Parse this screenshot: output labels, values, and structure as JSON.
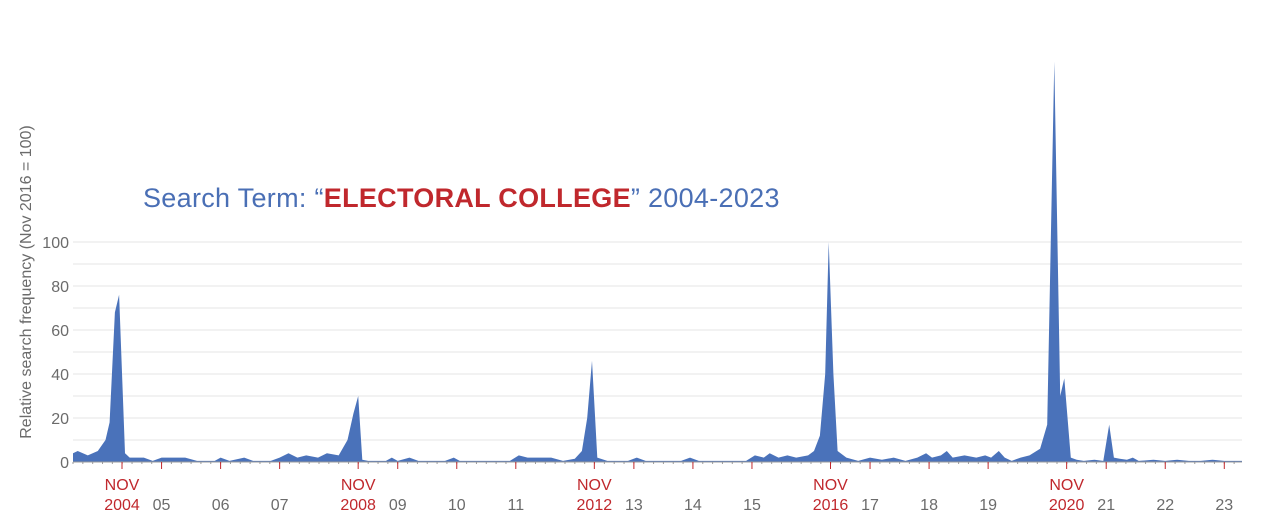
{
  "chart_data": {
    "type": "area",
    "title": {
      "prefix": "Search Term: “",
      "term": "ELECTORAL COLLEGE",
      "suffix": "” 2004-2023"
    },
    "xlabel": "",
    "ylabel": "Relative search frequency (Nov 2016 = 100)",
    "xlim": [
      2004.0,
      2023.8
    ],
    "ylim": [
      0,
      100
    ],
    "yticks": [
      0,
      20,
      40,
      60,
      80,
      100
    ],
    "grid": true,
    "legend": "none",
    "colors": {
      "series": "#4a72ba",
      "highlight": "#c0282d",
      "title": "#4a6fb5"
    },
    "xticks": [
      {
        "x": 2004.83,
        "label": "NOV",
        "label2": "2004",
        "highlight": true
      },
      {
        "x": 2005.5,
        "label": "05"
      },
      {
        "x": 2006.5,
        "label": "06"
      },
      {
        "x": 2007.5,
        "label": "07"
      },
      {
        "x": 2008.83,
        "label": "NOV",
        "label2": "2008",
        "highlight": true
      },
      {
        "x": 2009.5,
        "label": "09"
      },
      {
        "x": 2010.5,
        "label": "10"
      },
      {
        "x": 2011.5,
        "label": "11"
      },
      {
        "x": 2012.83,
        "label": "NOV",
        "label2": "2012",
        "highlight": true
      },
      {
        "x": 2013.5,
        "label": "13"
      },
      {
        "x": 2014.5,
        "label": "14"
      },
      {
        "x": 2015.5,
        "label": "15"
      },
      {
        "x": 2016.83,
        "label": "NOV",
        "label2": "2016",
        "highlight": true
      },
      {
        "x": 2017.5,
        "label": "17"
      },
      {
        "x": 2018.5,
        "label": "18"
      },
      {
        "x": 2019.5,
        "label": "19"
      },
      {
        "x": 2020.83,
        "label": "NOV",
        "label2": "2020",
        "highlight": true
      },
      {
        "x": 2021.5,
        "label": "21"
      },
      {
        "x": 2022.5,
        "label": "22"
      },
      {
        "x": 2023.5,
        "label": "23"
      }
    ],
    "series": [
      {
        "points": [
          [
            2004.0,
            4
          ],
          [
            2004.08,
            5
          ],
          [
            2004.25,
            3
          ],
          [
            2004.42,
            5
          ],
          [
            2004.55,
            10
          ],
          [
            2004.62,
            18
          ],
          [
            2004.71,
            68
          ],
          [
            2004.78,
            76
          ],
          [
            2004.88,
            4
          ],
          [
            2004.96,
            2
          ],
          [
            2005.2,
            2
          ],
          [
            2005.35,
            0.5
          ],
          [
            2005.5,
            2
          ],
          [
            2005.9,
            2
          ],
          [
            2006.1,
            0.5
          ],
          [
            2006.4,
            0.5
          ],
          [
            2006.5,
            2
          ],
          [
            2006.65,
            0.5
          ],
          [
            2006.9,
            2
          ],
          [
            2007.05,
            0.5
          ],
          [
            2007.35,
            0.5
          ],
          [
            2007.5,
            2
          ],
          [
            2007.65,
            4
          ],
          [
            2007.8,
            2
          ],
          [
            2007.95,
            3
          ],
          [
            2008.15,
            2
          ],
          [
            2008.3,
            4
          ],
          [
            2008.5,
            3
          ],
          [
            2008.65,
            10
          ],
          [
            2008.75,
            22
          ],
          [
            2008.83,
            30
          ],
          [
            2008.9,
            1
          ],
          [
            2009.0,
            0.5
          ],
          [
            2009.3,
            0.5
          ],
          [
            2009.4,
            2
          ],
          [
            2009.5,
            0.5
          ],
          [
            2009.7,
            2
          ],
          [
            2009.85,
            0.5
          ],
          [
            2010.3,
            0.5
          ],
          [
            2010.45,
            2
          ],
          [
            2010.55,
            0.5
          ],
          [
            2011.0,
            0.5
          ],
          [
            2011.4,
            0.5
          ],
          [
            2011.55,
            3
          ],
          [
            2011.7,
            2
          ],
          [
            2012.1,
            2
          ],
          [
            2012.3,
            0.5
          ],
          [
            2012.5,
            1.5
          ],
          [
            2012.62,
            5
          ],
          [
            2012.71,
            20
          ],
          [
            2012.79,
            46
          ],
          [
            2012.88,
            2
          ],
          [
            2013.05,
            0.5
          ],
          [
            2013.4,
            0.5
          ],
          [
            2013.55,
            2
          ],
          [
            2013.7,
            0.5
          ],
          [
            2014.3,
            0.5
          ],
          [
            2014.45,
            2
          ],
          [
            2014.6,
            0.5
          ],
          [
            2015.4,
            0.5
          ],
          [
            2015.55,
            3
          ],
          [
            2015.7,
            2
          ],
          [
            2015.8,
            4
          ],
          [
            2015.95,
            2
          ],
          [
            2016.1,
            3
          ],
          [
            2016.25,
            2
          ],
          [
            2016.45,
            3
          ],
          [
            2016.55,
            5
          ],
          [
            2016.65,
            12
          ],
          [
            2016.74,
            40
          ],
          [
            2016.8,
            100
          ],
          [
            2016.88,
            40
          ],
          [
            2016.95,
            5
          ],
          [
            2017.1,
            2
          ],
          [
            2017.3,
            0.5
          ],
          [
            2017.5,
            2
          ],
          [
            2017.7,
            1
          ],
          [
            2017.9,
            2
          ],
          [
            2018.1,
            0.5
          ],
          [
            2018.3,
            2
          ],
          [
            2018.45,
            4
          ],
          [
            2018.55,
            2
          ],
          [
            2018.7,
            3
          ],
          [
            2018.8,
            5
          ],
          [
            2018.9,
            2
          ],
          [
            2019.1,
            3
          ],
          [
            2019.3,
            2
          ],
          [
            2019.45,
            3
          ],
          [
            2019.55,
            2
          ],
          [
            2019.68,
            5
          ],
          [
            2019.78,
            2
          ],
          [
            2019.9,
            0.5
          ],
          [
            2020.05,
            2
          ],
          [
            2020.2,
            3
          ],
          [
            2020.38,
            6
          ],
          [
            2020.5,
            17
          ],
          [
            2020.62,
            182
          ],
          [
            2020.72,
            30
          ],
          [
            2020.79,
            38
          ],
          [
            2020.9,
            2
          ],
          [
            2021.0,
            1
          ],
          [
            2021.12,
            0.5
          ],
          [
            2021.3,
            1
          ],
          [
            2021.45,
            0.5
          ],
          [
            2021.55,
            17
          ],
          [
            2021.63,
            2
          ],
          [
            2021.73,
            1.5
          ],
          [
            2021.85,
            1
          ],
          [
            2021.95,
            2
          ],
          [
            2022.05,
            0.5
          ],
          [
            2022.3,
            1
          ],
          [
            2022.5,
            0.5
          ],
          [
            2022.7,
            1
          ],
          [
            2022.9,
            0.5
          ],
          [
            2023.1,
            0.5
          ],
          [
            2023.3,
            1
          ],
          [
            2023.5,
            0.5
          ],
          [
            2023.75,
            0.5
          ],
          [
            2023.8,
            0.5
          ]
        ]
      }
    ]
  }
}
